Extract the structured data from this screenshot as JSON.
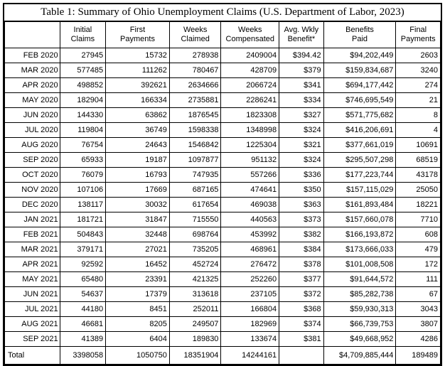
{
  "title": "Table 1: Summary of Ohio Unemployment Claims (U.S. Department of Labor, 2023)",
  "colors": {
    "border": "#000000",
    "background": "#ffffff",
    "text": "#000000"
  },
  "table": {
    "headers": [
      "",
      "Initial\nClaims",
      "First\nPayments",
      "Weeks\nClaimed",
      "Weeks\nCompensated",
      "Avg. Wkly\nBenefit*",
      "Benefits\nPaid",
      "Final\nPayments"
    ],
    "rows": [
      {
        "month": "FEB 2020",
        "values": [
          "27945",
          "15732",
          "278938",
          "2409004",
          "$394.42",
          "$94,202,449",
          "2603"
        ]
      },
      {
        "month": "MAR 2020",
        "values": [
          "577485",
          "111262",
          "780467",
          "428709",
          "$379",
          "$159,834,687",
          "3240"
        ]
      },
      {
        "month": "APR 2020",
        "values": [
          "498852",
          "392621",
          "2634666",
          "2066724",
          "$341",
          "$694,177,442",
          "274"
        ]
      },
      {
        "month": "MAY 2020",
        "values": [
          "182904",
          "166334",
          "2735881",
          "2286241",
          "$334",
          "$746,695,549",
          "21"
        ]
      },
      {
        "month": "JUN 2020",
        "values": [
          "144330",
          "63862",
          "1876545",
          "1823308",
          "$327",
          "$571,775,682",
          "8"
        ]
      },
      {
        "month": "JUL 2020",
        "values": [
          "119804",
          "36749",
          "1598338",
          "1348998",
          "$324",
          "$416,206,691",
          "4"
        ]
      },
      {
        "month": "AUG 2020",
        "values": [
          "76754",
          "24643",
          "1546842",
          "1225304",
          "$321",
          "$377,661,019",
          "10691"
        ]
      },
      {
        "month": "SEP 2020",
        "values": [
          "65933",
          "19187",
          "1097877",
          "951132",
          "$324",
          "$295,507,298",
          "68519"
        ]
      },
      {
        "month": "OCT 2020",
        "values": [
          "76079",
          "16793",
          "747935",
          "557266",
          "$336",
          "$177,223,744",
          "43178"
        ]
      },
      {
        "month": "NOV 2020",
        "values": [
          "107106",
          "17669",
          "687165",
          "474641",
          "$350",
          "$157,115,029",
          "25050"
        ]
      },
      {
        "month": "DEC 2020",
        "values": [
          "138117",
          "30032",
          "617654",
          "469038",
          "$363",
          "$161,893,484",
          "18221"
        ]
      },
      {
        "month": "JAN 2021",
        "values": [
          "181721",
          "31847",
          "715550",
          "440563",
          "$373",
          "$157,660,078",
          "7710"
        ]
      },
      {
        "month": "FEB 2021",
        "values": [
          "504843",
          "32448",
          "698764",
          "453992",
          "$382",
          "$166,193,872",
          "608"
        ]
      },
      {
        "month": "MAR 2021",
        "values": [
          "379171",
          "27021",
          "735205",
          "468961",
          "$384",
          "$173,666,033",
          "479"
        ]
      },
      {
        "month": "APR 2021",
        "values": [
          "92592",
          "16452",
          "452724",
          "276472",
          "$378",
          "$101,008,508",
          "172"
        ]
      },
      {
        "month": "MAY 2021",
        "values": [
          "65480",
          "23391",
          "421325",
          "252260",
          "$377",
          "$91,644,572",
          "111"
        ]
      },
      {
        "month": "JUN 2021",
        "values": [
          "54637",
          "17379",
          "313618",
          "237105",
          "$372",
          "$85,282,738",
          "67"
        ]
      },
      {
        "month": "JUL 2021",
        "values": [
          "44180",
          "8451",
          "252011",
          "166804",
          "$368",
          "$59,930,313",
          "3043"
        ]
      },
      {
        "month": "AUG 2021",
        "values": [
          "46681",
          "8205",
          "249507",
          "182969",
          "$374",
          "$66,739,753",
          "3807"
        ]
      },
      {
        "month": "SEP 2021",
        "values": [
          "41389",
          "6404",
          "189830",
          "133674",
          "$381",
          "$49,668,952",
          "4286"
        ]
      }
    ],
    "total": {
      "label": "Total",
      "values": [
        "3398058",
        "1050750",
        "18351904",
        "14244161",
        "",
        "$4,709,885,444",
        "189489"
      ]
    }
  }
}
